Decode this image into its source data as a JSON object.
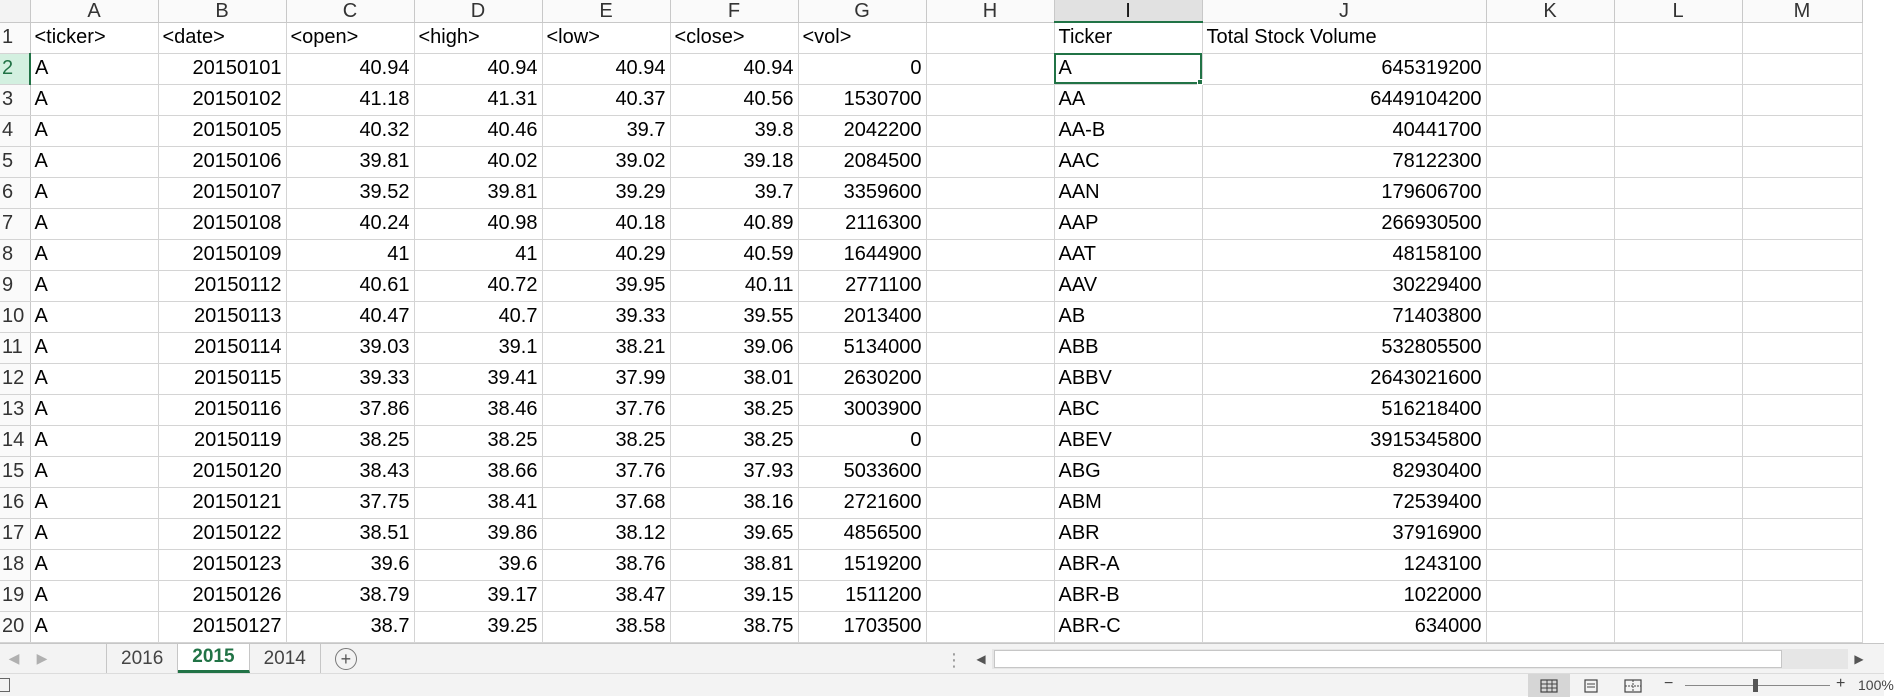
{
  "columns": [
    "A",
    "B",
    "C",
    "D",
    "E",
    "F",
    "G",
    "H",
    "I",
    "J",
    "K",
    "L",
    "M"
  ],
  "active_column": "I",
  "active_row": "2",
  "rows": [
    [
      "1",
      "<ticker>",
      "<date>",
      "<open>",
      "<high>",
      "<low>",
      "<close>",
      "<vol>",
      "",
      "Ticker",
      "Total Stock Volume",
      "",
      "",
      ""
    ],
    [
      "2",
      "A",
      "20150101",
      "40.94",
      "40.94",
      "40.94",
      "40.94",
      "0",
      "",
      "A",
      "645319200",
      "",
      "",
      ""
    ],
    [
      "3",
      "A",
      "20150102",
      "41.18",
      "41.31",
      "40.37",
      "40.56",
      "1530700",
      "",
      "AA",
      "6449104200",
      "",
      "",
      ""
    ],
    [
      "4",
      "A",
      "20150105",
      "40.32",
      "40.46",
      "39.7",
      "39.8",
      "2042200",
      "",
      "AA-B",
      "40441700",
      "",
      "",
      ""
    ],
    [
      "5",
      "A",
      "20150106",
      "39.81",
      "40.02",
      "39.02",
      "39.18",
      "2084500",
      "",
      "AAC",
      "78122300",
      "",
      "",
      ""
    ],
    [
      "6",
      "A",
      "20150107",
      "39.52",
      "39.81",
      "39.29",
      "39.7",
      "3359600",
      "",
      "AAN",
      "179606700",
      "",
      "",
      ""
    ],
    [
      "7",
      "A",
      "20150108",
      "40.24",
      "40.98",
      "40.18",
      "40.89",
      "2116300",
      "",
      "AAP",
      "266930500",
      "",
      "",
      ""
    ],
    [
      "8",
      "A",
      "20150109",
      "41",
      "41",
      "40.29",
      "40.59",
      "1644900",
      "",
      "AAT",
      "48158100",
      "",
      "",
      ""
    ],
    [
      "9",
      "A",
      "20150112",
      "40.61",
      "40.72",
      "39.95",
      "40.11",
      "2771100",
      "",
      "AAV",
      "30229400",
      "",
      "",
      ""
    ],
    [
      "10",
      "A",
      "20150113",
      "40.47",
      "40.7",
      "39.33",
      "39.55",
      "2013400",
      "",
      "AB",
      "71403800",
      "",
      "",
      ""
    ],
    [
      "11",
      "A",
      "20150114",
      "39.03",
      "39.1",
      "38.21",
      "39.06",
      "5134000",
      "",
      "ABB",
      "532805500",
      "",
      "",
      ""
    ],
    [
      "12",
      "A",
      "20150115",
      "39.33",
      "39.41",
      "37.99",
      "38.01",
      "2630200",
      "",
      "ABBV",
      "2643021600",
      "",
      "",
      ""
    ],
    [
      "13",
      "A",
      "20150116",
      "37.86",
      "38.46",
      "37.76",
      "38.25",
      "3003900",
      "",
      "ABC",
      "516218400",
      "",
      "",
      ""
    ],
    [
      "14",
      "A",
      "20150119",
      "38.25",
      "38.25",
      "38.25",
      "38.25",
      "0",
      "",
      "ABEV",
      "3915345800",
      "",
      "",
      ""
    ],
    [
      "15",
      "A",
      "20150120",
      "38.43",
      "38.66",
      "37.76",
      "37.93",
      "5033600",
      "",
      "ABG",
      "82930400",
      "",
      "",
      ""
    ],
    [
      "16",
      "A",
      "20150121",
      "37.75",
      "38.41",
      "37.68",
      "38.16",
      "2721600",
      "",
      "ABM",
      "72539400",
      "",
      "",
      ""
    ],
    [
      "17",
      "A",
      "20150122",
      "38.51",
      "39.86",
      "38.12",
      "39.65",
      "4856500",
      "",
      "ABR",
      "37916900",
      "",
      "",
      ""
    ],
    [
      "18",
      "A",
      "20150123",
      "39.6",
      "39.6",
      "38.76",
      "38.81",
      "1519200",
      "",
      "ABR-A",
      "1243100",
      "",
      "",
      ""
    ],
    [
      "19",
      "A",
      "20150126",
      "38.79",
      "39.17",
      "38.47",
      "39.15",
      "1511200",
      "",
      "ABR-B",
      "1022000",
      "",
      "",
      ""
    ],
    [
      "20",
      "A",
      "20150127",
      "38.7",
      "39.25",
      "38.58",
      "38.75",
      "1703500",
      "",
      "ABR-C",
      "634000",
      "",
      "",
      ""
    ]
  ],
  "sheet_tabs": [
    {
      "label": "2016",
      "active": false
    },
    {
      "label": "2015",
      "active": true
    },
    {
      "label": "2014",
      "active": false
    }
  ],
  "glyphs": {
    "tab_prev": "◀",
    "tab_next": "▶",
    "add_sheet": "+",
    "splitter": "⋮",
    "scroll_left": "◀",
    "scroll_right": "▶",
    "zoom_minus": "−",
    "zoom_plus": "+"
  },
  "status": {
    "zoom_level": "100%"
  },
  "colors": {
    "accent": "#217346",
    "selected_row_header": "#d3f0e0",
    "grid_line": "#d4d4d4"
  }
}
